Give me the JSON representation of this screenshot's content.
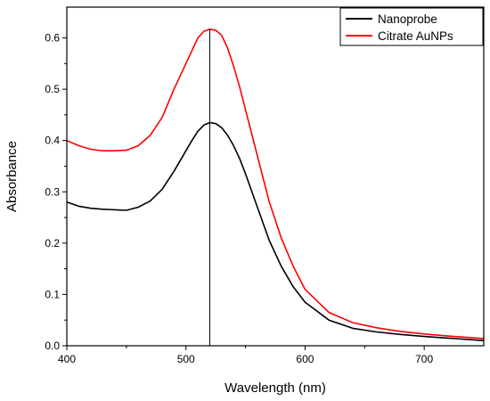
{
  "chart_data": {
    "type": "line",
    "title": "",
    "xlabel": "Wavelength (nm)",
    "ylabel": "Absorbance",
    "xlim": [
      400,
      750
    ],
    "ylim": [
      0,
      0.66
    ],
    "xticks": [
      400,
      500,
      600,
      700
    ],
    "xtick_labels": [
      "400",
      "500",
      "600",
      "700"
    ],
    "yticks": [
      0.0,
      0.1,
      0.2,
      0.3,
      0.4,
      0.5,
      0.6
    ],
    "ytick_labels": [
      "0.0",
      "0.1",
      "0.2",
      "0.3",
      "0.4",
      "0.5",
      "0.6"
    ],
    "grid": false,
    "legend_position": "top-right",
    "vertical_line_x": 520,
    "series": [
      {
        "name": "Nanoprobe",
        "color": "#000000",
        "x": [
          400,
          410,
          420,
          430,
          440,
          450,
          460,
          470,
          480,
          490,
          500,
          505,
          510,
          515,
          520,
          525,
          530,
          535,
          540,
          545,
          550,
          560,
          570,
          580,
          590,
          600,
          620,
          640,
          660,
          680,
          700,
          720,
          750
        ],
        "y": [
          0.28,
          0.272,
          0.268,
          0.266,
          0.265,
          0.264,
          0.27,
          0.282,
          0.305,
          0.34,
          0.38,
          0.4,
          0.418,
          0.43,
          0.435,
          0.433,
          0.425,
          0.41,
          0.39,
          0.365,
          0.335,
          0.27,
          0.205,
          0.155,
          0.115,
          0.085,
          0.05,
          0.034,
          0.027,
          0.022,
          0.018,
          0.015,
          0.01
        ]
      },
      {
        "name": "Citrate AuNPs",
        "color": "#ff0000",
        "x": [
          400,
          410,
          420,
          430,
          440,
          450,
          460,
          470,
          480,
          490,
          500,
          505,
          510,
          515,
          520,
          525,
          530,
          535,
          540,
          545,
          550,
          560,
          570,
          580,
          590,
          600,
          620,
          640,
          660,
          680,
          700,
          720,
          750
        ],
        "y": [
          0.4,
          0.39,
          0.383,
          0.38,
          0.38,
          0.381,
          0.39,
          0.41,
          0.445,
          0.5,
          0.55,
          0.575,
          0.6,
          0.613,
          0.617,
          0.615,
          0.605,
          0.58,
          0.545,
          0.505,
          0.46,
          0.37,
          0.28,
          0.21,
          0.155,
          0.11,
          0.065,
          0.045,
          0.035,
          0.028,
          0.023,
          0.019,
          0.014
        ]
      }
    ]
  }
}
